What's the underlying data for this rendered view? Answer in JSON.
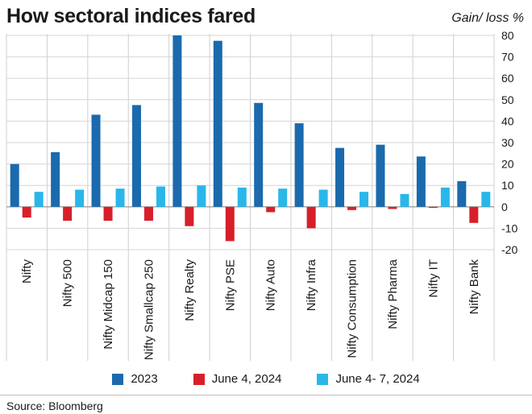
{
  "header": {
    "title": "How sectoral indices fared",
    "unit_label": "Gain/ loss %"
  },
  "source": "Source: Bloomberg",
  "chart_data": {
    "type": "bar",
    "title": "How sectoral indices fared",
    "ylabel": "Gain/ loss %",
    "xlabel": "",
    "ylim": [
      -20,
      80
    ],
    "yticks": [
      80,
      70,
      60,
      50,
      40,
      30,
      20,
      10,
      0,
      -10,
      -20
    ],
    "grid": true,
    "legend_position": "bottom",
    "categories": [
      "Nifty",
      "Nifty 500",
      "Nifty Midcap 150",
      "Nifty Smallcap 250",
      "Nifty Realty",
      "Nifty PSE",
      "Nifty Auto",
      "Nifty Infra",
      "Nifty Consumption",
      "Nifty Pharma",
      "Nifty IT",
      "Nifty Bank"
    ],
    "series": [
      {
        "name": "2023",
        "color": "#1a6aad",
        "values": [
          20,
          25.5,
          43,
          47.5,
          80,
          77.5,
          48.5,
          39,
          27.5,
          29,
          23.5,
          12
        ]
      },
      {
        "name": "June 4, 2024",
        "color": "#d71f2a",
        "values": [
          -5,
          -6.5,
          -6.5,
          -6.5,
          -9,
          -16,
          -2.5,
          -10,
          -1.5,
          -1,
          -0.5,
          -7.5
        ]
      },
      {
        "name": "June 4- 7, 2024",
        "color": "#29b7ea",
        "values": [
          7,
          8,
          8.5,
          9.5,
          10,
          9,
          8.5,
          8,
          7,
          6,
          9,
          7
        ]
      }
    ]
  }
}
